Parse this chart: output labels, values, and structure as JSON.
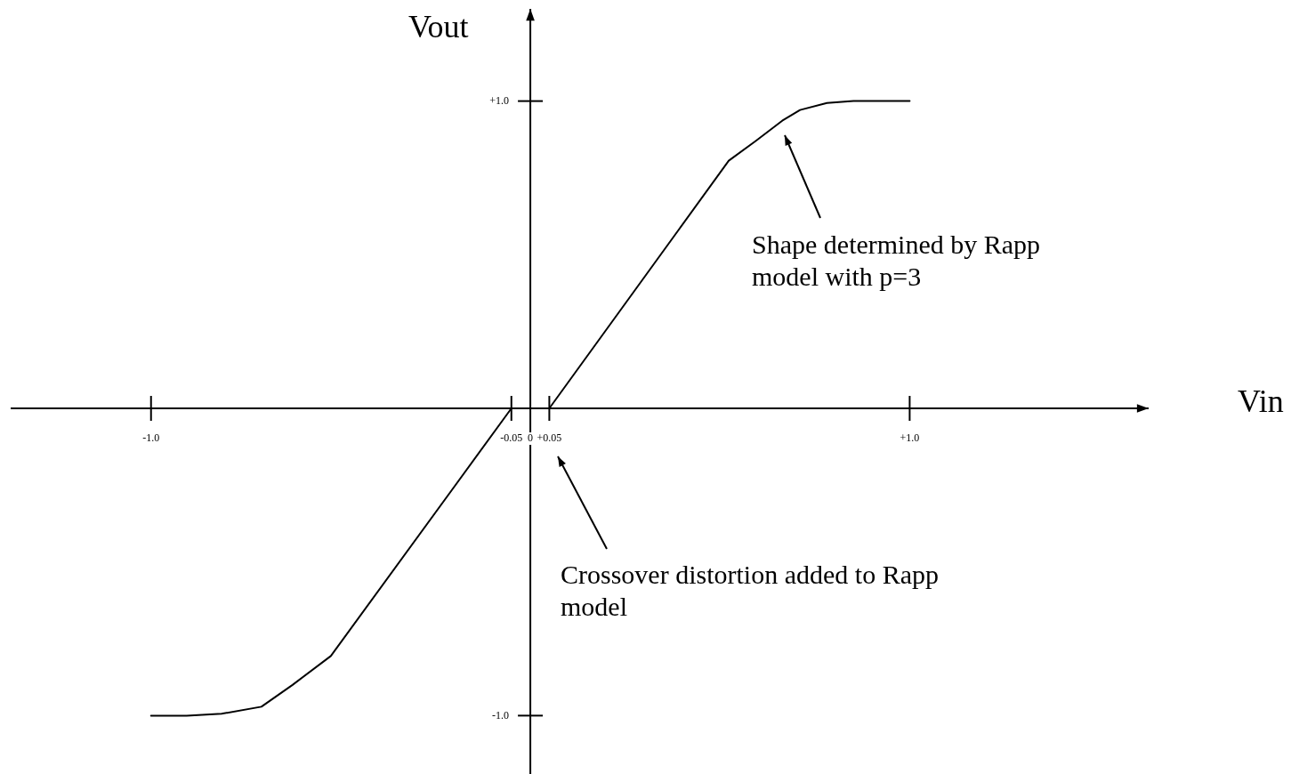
{
  "chart_data": {
    "type": "line",
    "xlabel": "Vin",
    "ylabel": "Vout",
    "x": [
      -1.0,
      -0.906,
      -0.814,
      -0.709,
      -0.627,
      -0.526,
      -0.05,
      0.05,
      0.523,
      0.594,
      0.664,
      0.711,
      0.782,
      0.852,
      1.0
    ],
    "values": [
      -1.0,
      -1.0,
      -0.994,
      -0.971,
      -0.9,
      -0.806,
      0,
      0,
      0.806,
      0.87,
      0.936,
      0.971,
      0.994,
      1.0,
      1.0
    ],
    "color": "#000000",
    "xlim": [
      -1.37,
      1.63
    ],
    "ylim": [
      -1.19,
      1.3
    ],
    "xticks": [
      {
        "value": -1.0,
        "label": "-1.0"
      },
      -0.05,
      0,
      {
        "value": 0.05,
        "label": "+0.05"
      },
      {
        "value": 1.0,
        "label": "+1.0"
      }
    ],
    "yticks": [
      {
        "value": 1.0,
        "label": "+1.0"
      },
      {
        "value": -1.0,
        "label": "-1.0"
      }
    ],
    "grid": false,
    "legend": false,
    "marker": "none",
    "line_style": "solid",
    "annotations": [
      "Shape determined by Rapp model with p=3",
      "Crossover distortion added to Rapp model"
    ]
  }
}
